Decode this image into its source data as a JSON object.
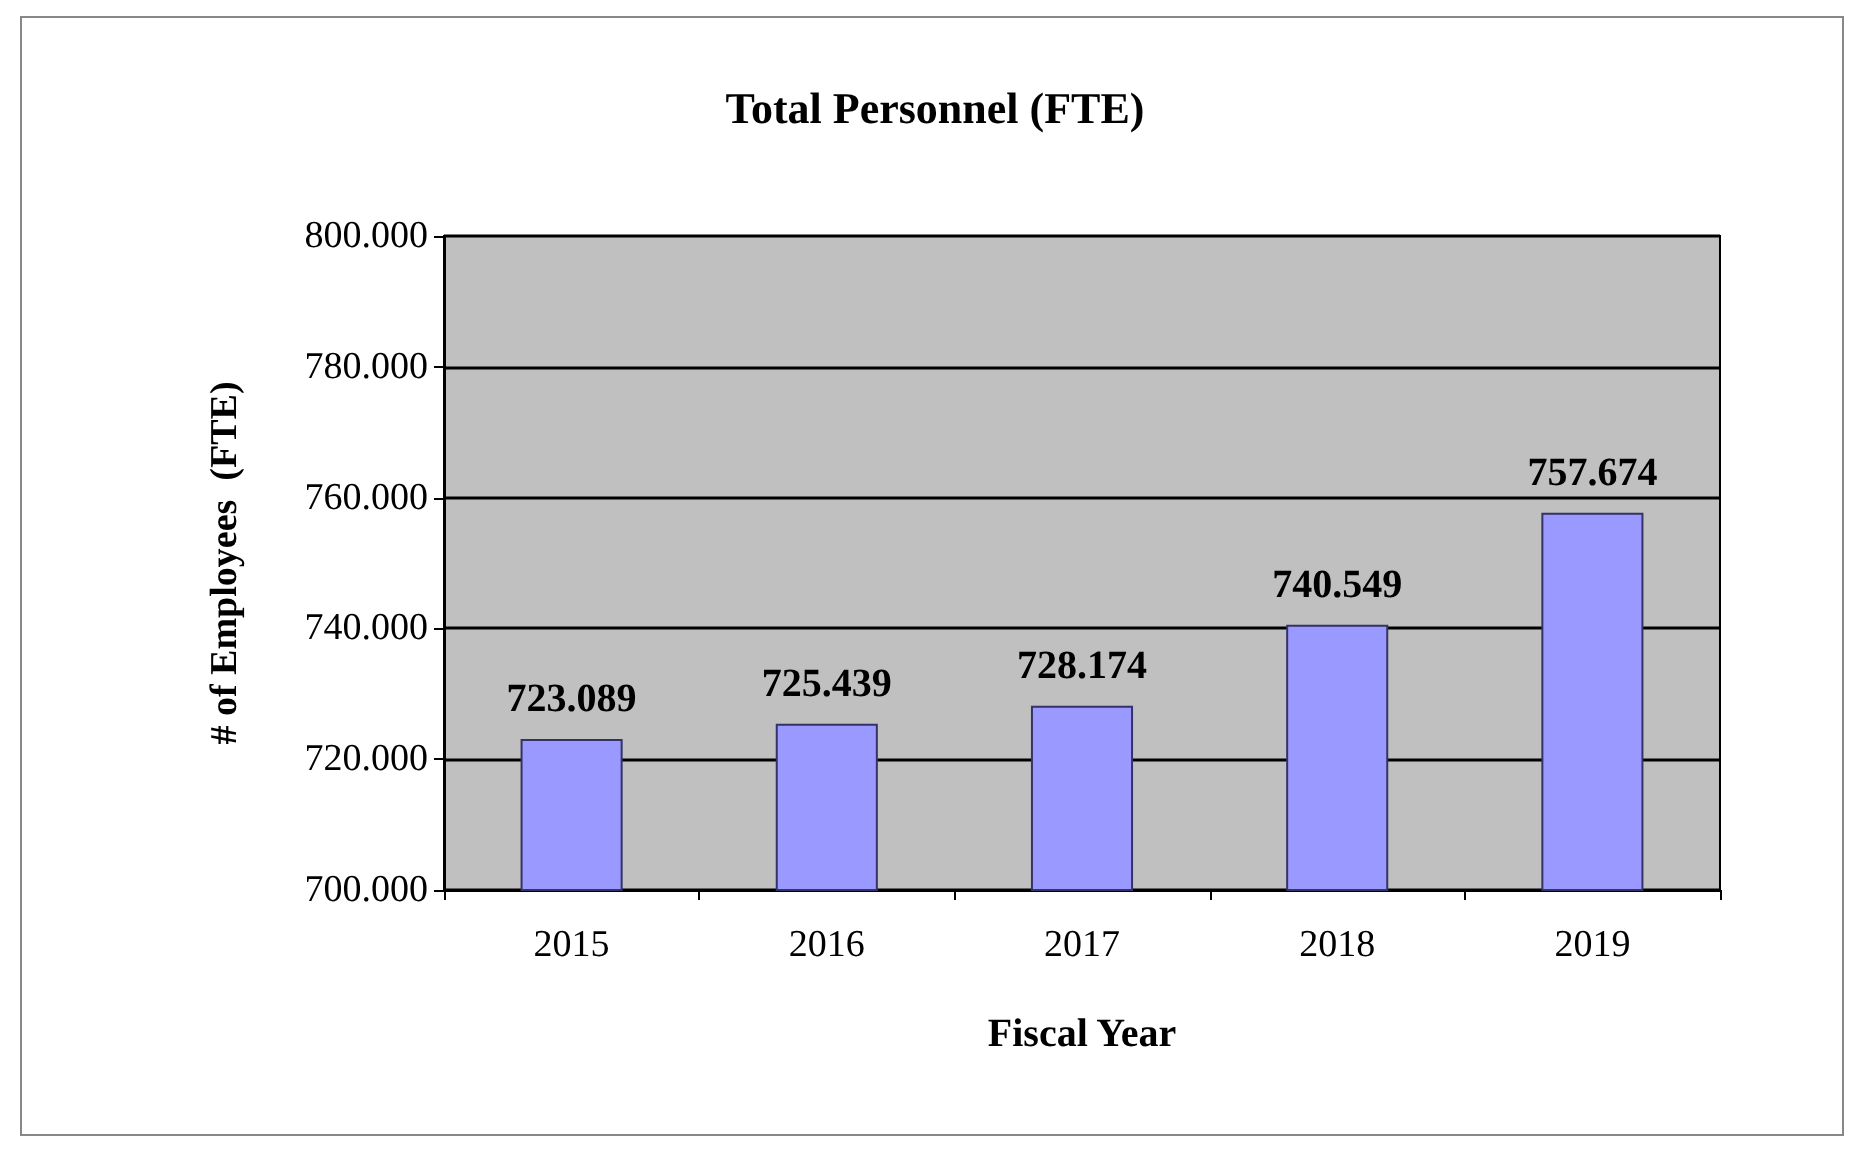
{
  "chart_data": {
    "type": "bar",
    "title": "Total Personnel (FTE)",
    "xlabel": "Fiscal Year",
    "ylabel": "# of Employees  (FTE)",
    "categories": [
      "2015",
      "2016",
      "2017",
      "2018",
      "2019"
    ],
    "values": [
      723089,
      725439,
      728174,
      740549,
      757674
    ],
    "value_labels": [
      "723.089",
      "725.439",
      "728.174",
      "740.549",
      "757.674"
    ],
    "color": "#9999ff",
    "ylim": [
      700000,
      800000
    ],
    "yticks": [
      {
        "value": 700000,
        "label": "700.000"
      },
      {
        "value": 720000,
        "label": "720.000"
      },
      {
        "value": 740000,
        "label": "740.000"
      },
      {
        "value": 760000,
        "label": "760.000"
      },
      {
        "value": 780000,
        "label": "780.000"
      },
      {
        "value": 800000,
        "label": "800.000"
      }
    ],
    "grid": "y"
  }
}
